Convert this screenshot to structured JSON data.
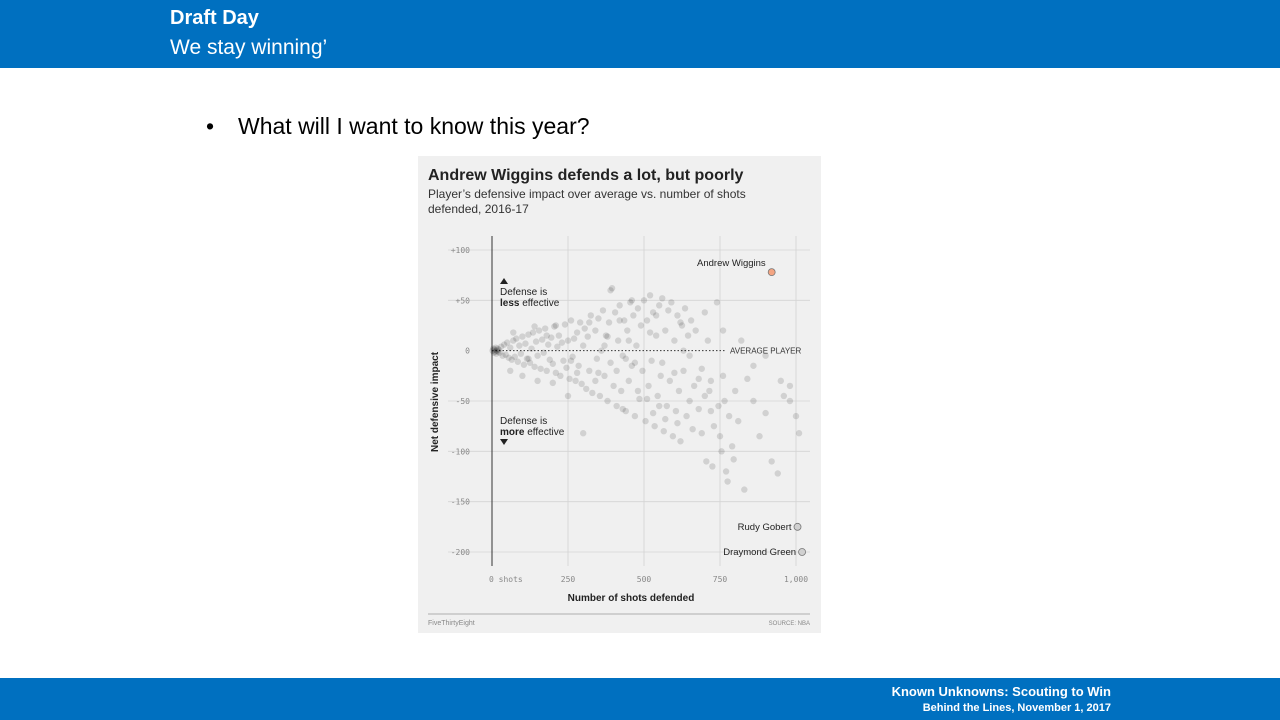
{
  "header": {
    "title": "Draft Day",
    "subtitle": "We stay winning’"
  },
  "content": {
    "bullet": "•",
    "bullet_text": "What will I want to know this year?"
  },
  "footer": {
    "title": "Known Unknowns: Scouting to Win",
    "subtitle": "Behind the Lines, November 1, 2017"
  },
  "chart_data": {
    "type": "scatter",
    "title": "Andrew Wiggins defends a lot, but poorly",
    "subtitle_line1": "Player’s defensive impact over average vs. number of shots",
    "subtitle_line2": "defended, 2016-17",
    "xlabel": "Number of shots defended",
    "ylabel": "Net defensive impact",
    "xlim": [
      0,
      1000
    ],
    "ylim": [
      -200,
      100
    ],
    "x_ticks": [
      {
        "value": 0,
        "label": "0 shots"
      },
      {
        "value": 250,
        "label": "250"
      },
      {
        "value": 500,
        "label": "500"
      },
      {
        "value": 750,
        "label": "750"
      },
      {
        "value": 1000,
        "label": "1,000"
      }
    ],
    "y_ticks": [
      {
        "value": 100,
        "label": "+100"
      },
      {
        "value": 50,
        "label": "+50"
      },
      {
        "value": 0,
        "label": "0"
      },
      {
        "value": -50,
        "label": "-50"
      },
      {
        "value": -100,
        "label": "-100"
      },
      {
        "value": -150,
        "label": "-150"
      },
      {
        "value": -200,
        "label": "-200"
      }
    ],
    "grid": true,
    "average_line_label": "AVERAGE PLAYER",
    "annotation_top": {
      "line1": "Defense is",
      "bold": "less",
      "rest": " effective"
    },
    "annotation_bottom": {
      "line1": "Defense is",
      "bold": "more",
      "rest": " effective"
    },
    "highlighted": [
      {
        "label": "Andrew Wiggins",
        "x": 920,
        "y": 78,
        "color": "#f4a582"
      },
      {
        "label": "Rudy Gobert",
        "x": 1005,
        "y": -175,
        "color": "#d0d0d0"
      },
      {
        "label": "Draymond Green",
        "x": 1020,
        "y": -200,
        "color": "#d0d0d0"
      }
    ],
    "points": [
      [
        2,
        0
      ],
      [
        4,
        2
      ],
      [
        6,
        -2
      ],
      [
        8,
        1
      ],
      [
        10,
        -1
      ],
      [
        12,
        3
      ],
      [
        14,
        -3
      ],
      [
        16,
        0
      ],
      [
        18,
        2
      ],
      [
        20,
        -1
      ],
      [
        22,
        1
      ],
      [
        25,
        -2
      ],
      [
        30,
        4
      ],
      [
        35,
        -5
      ],
      [
        40,
        6
      ],
      [
        45,
        -4
      ],
      [
        50,
        8
      ],
      [
        55,
        -7
      ],
      [
        60,
        3
      ],
      [
        65,
        -9
      ],
      [
        70,
        10
      ],
      [
        75,
        -6
      ],
      [
        80,
        12
      ],
      [
        85,
        -11
      ],
      [
        90,
        5
      ],
      [
        95,
        -3
      ],
      [
        100,
        14
      ],
      [
        105,
        -14
      ],
      [
        110,
        7
      ],
      [
        115,
        -8
      ],
      [
        120,
        16
      ],
      [
        125,
        -12
      ],
      [
        130,
        2
      ],
      [
        135,
        18
      ],
      [
        140,
        -16
      ],
      [
        145,
        9
      ],
      [
        150,
        -5
      ],
      [
        155,
        20
      ],
      [
        160,
        -18
      ],
      [
        165,
        11
      ],
      [
        170,
        -2
      ],
      [
        175,
        22
      ],
      [
        180,
        -20
      ],
      [
        185,
        6
      ],
      [
        190,
        -9
      ],
      [
        195,
        13
      ],
      [
        200,
        -13
      ],
      [
        205,
        24
      ],
      [
        210,
        -22
      ],
      [
        215,
        4
      ],
      [
        220,
        15
      ],
      [
        225,
        -25
      ],
      [
        230,
        8
      ],
      [
        235,
        -10
      ],
      [
        240,
        26
      ],
      [
        245,
        -17
      ],
      [
        250,
        10
      ],
      [
        255,
        -28
      ],
      [
        260,
        30
      ],
      [
        265,
        -6
      ],
      [
        270,
        12
      ],
      [
        275,
        -30
      ],
      [
        280,
        18
      ],
      [
        285,
        -15
      ],
      [
        290,
        28
      ],
      [
        295,
        -33
      ],
      [
        300,
        5
      ],
      [
        305,
        22
      ],
      [
        310,
        -38
      ],
      [
        315,
        14
      ],
      [
        320,
        -20
      ],
      [
        325,
        35
      ],
      [
        330,
        -42
      ],
      [
        340,
        20
      ],
      [
        345,
        -8
      ],
      [
        350,
        32
      ],
      [
        355,
        -45
      ],
      [
        360,
        0
      ],
      [
        365,
        40
      ],
      [
        370,
        -25
      ],
      [
        375,
        15
      ],
      [
        380,
        -50
      ],
      [
        385,
        28
      ],
      [
        390,
        -12
      ],
      [
        395,
        62
      ],
      [
        400,
        -35
      ],
      [
        405,
        38
      ],
      [
        410,
        -55
      ],
      [
        415,
        10
      ],
      [
        420,
        45
      ],
      [
        425,
        -40
      ],
      [
        430,
        -5
      ],
      [
        435,
        30
      ],
      [
        440,
        -60
      ],
      [
        445,
        20
      ],
      [
        450,
        -30
      ],
      [
        455,
        48
      ],
      [
        460,
        -15
      ],
      [
        465,
        35
      ],
      [
        470,
        -65
      ],
      [
        475,
        5
      ],
      [
        480,
        42
      ],
      [
        485,
        -48
      ],
      [
        490,
        25
      ],
      [
        495,
        -20
      ],
      [
        500,
        50
      ],
      [
        505,
        -70
      ],
      [
        510,
        30
      ],
      [
        515,
        -35
      ],
      [
        520,
        55
      ],
      [
        525,
        -10
      ],
      [
        530,
        38
      ],
      [
        535,
        -75
      ],
      [
        540,
        15
      ],
      [
        545,
        -45
      ],
      [
        550,
        45
      ],
      [
        555,
        -25
      ],
      [
        560,
        52
      ],
      [
        565,
        -80
      ],
      [
        570,
        20
      ],
      [
        575,
        -55
      ],
      [
        580,
        40
      ],
      [
        585,
        -30
      ],
      [
        590,
        48
      ],
      [
        595,
        -85
      ],
      [
        600,
        10
      ],
      [
        605,
        -60
      ],
      [
        610,
        35
      ],
      [
        615,
        -40
      ],
      [
        620,
        -90
      ],
      [
        625,
        25
      ],
      [
        630,
        -20
      ],
      [
        635,
        42
      ],
      [
        640,
        -65
      ],
      [
        645,
        15
      ],
      [
        650,
        -50
      ],
      [
        655,
        30
      ],
      [
        660,
        -78
      ],
      [
        665,
        -35
      ],
      [
        670,
        20
      ],
      [
        680,
        -58
      ],
      [
        690,
        -82
      ],
      [
        700,
        -45
      ],
      [
        705,
        -110
      ],
      [
        710,
        10
      ],
      [
        715,
        -40
      ],
      [
        720,
        -60
      ],
      [
        725,
        -115
      ],
      [
        730,
        -75
      ],
      [
        740,
        48
      ],
      [
        745,
        -55
      ],
      [
        750,
        -85
      ],
      [
        755,
        -100
      ],
      [
        760,
        20
      ],
      [
        765,
        -50
      ],
      [
        770,
        -120
      ],
      [
        775,
        -130
      ],
      [
        780,
        -65
      ],
      [
        790,
        -95
      ],
      [
        795,
        -108
      ],
      [
        810,
        -70
      ],
      [
        830,
        -138
      ],
      [
        840,
        -28
      ],
      [
        860,
        -50
      ],
      [
        880,
        -85
      ],
      [
        900,
        -62
      ],
      [
        920,
        -110
      ],
      [
        940,
        -122
      ],
      [
        960,
        -45
      ],
      [
        980,
        -35
      ],
      [
        1000,
        -65
      ],
      [
        1010,
        -82
      ],
      [
        300,
        -82
      ],
      [
        420,
        30
      ],
      [
        480,
        -40
      ],
      [
        560,
        -12
      ],
      [
        620,
        28
      ],
      [
        250,
        -45
      ],
      [
        350,
        -22
      ],
      [
        450,
        10
      ],
      [
        550,
        -55
      ],
      [
        650,
        -5
      ],
      [
        150,
        -30
      ],
      [
        210,
        25
      ],
      [
        370,
        5
      ],
      [
        430,
        -58
      ],
      [
        520,
        18
      ],
      [
        600,
        -22
      ],
      [
        680,
        -28
      ],
      [
        120,
        -8
      ],
      [
        180,
        15
      ],
      [
        260,
        -10
      ],
      [
        340,
        -30
      ],
      [
        410,
        -20
      ],
      [
        460,
        50
      ],
      [
        540,
        35
      ],
      [
        610,
        -72
      ],
      [
        690,
        -18
      ],
      [
        760,
        -25
      ],
      [
        390,
        60
      ],
      [
        470,
        -12
      ],
      [
        530,
        -62
      ],
      [
        60,
        -20
      ],
      [
        70,
        18
      ],
      [
        100,
        -25
      ],
      [
        140,
        24
      ],
      [
        200,
        -32
      ],
      [
        280,
        -22
      ],
      [
        320,
        28
      ],
      [
        380,
        14
      ],
      [
        440,
        -8
      ],
      [
        510,
        -48
      ],
      [
        570,
        -68
      ],
      [
        630,
        0
      ],
      [
        700,
        38
      ],
      [
        720,
        -30
      ],
      [
        800,
        -40
      ],
      [
        820,
        10
      ],
      [
        860,
        -15
      ],
      [
        900,
        -5
      ],
      [
        950,
        -30
      ],
      [
        980,
        -50
      ]
    ]
  },
  "chart_footer": {
    "brand": "FiveThirtyEight",
    "source": "SOURCE: NBA"
  }
}
